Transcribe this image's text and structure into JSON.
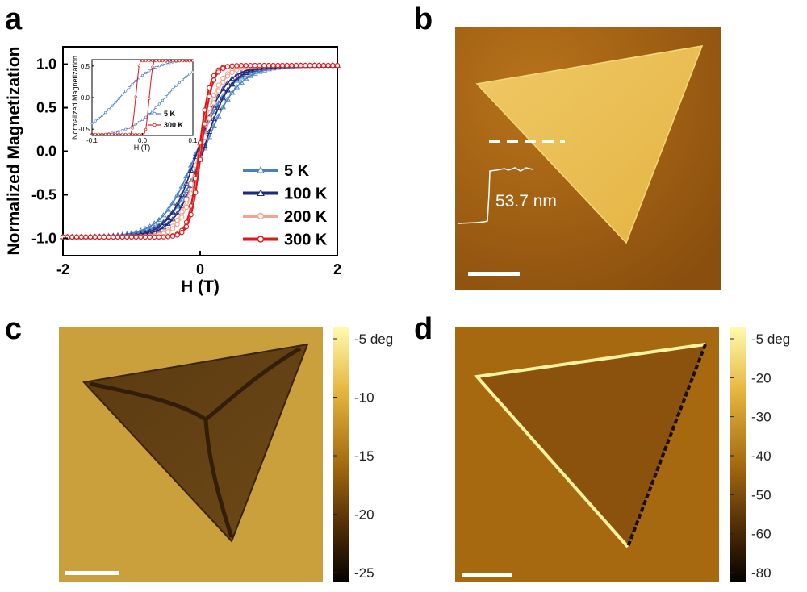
{
  "panels": {
    "a": "a",
    "b": "b",
    "c": "c",
    "d": "d"
  },
  "chart_data": {
    "type": "line",
    "xlabel": "H (T)",
    "ylabel": "Normalized Magnetization",
    "xlim": [
      -2,
      2
    ],
    "ylim": [
      -1.2,
      1.2
    ],
    "xticks": [
      "-2",
      "0",
      "2"
    ],
    "yticks": [
      "-1.0",
      "-0.5",
      "0.0",
      "0.5",
      "1.0"
    ],
    "legend_placement": "lower-right",
    "series": [
      {
        "name": "5 K",
        "color": "#4a7fc1",
        "marker": "triangle",
        "coercive_field": 0.05,
        "saturation_field": 1.6
      },
      {
        "name": "100 K",
        "color": "#202a7a",
        "marker": "triangle",
        "coercive_field": 0.04,
        "saturation_field": 1.3
      },
      {
        "name": "200 K",
        "color": "#f0a590",
        "marker": "circle",
        "coercive_field": 0.02,
        "saturation_field": 0.9
      },
      {
        "name": "300 K",
        "color": "#e01818",
        "marker": "circle",
        "coercive_field": 0.015,
        "saturation_field": 0.5
      }
    ],
    "inset": {
      "xlabel": "H (T)",
      "ylabel": "Normalized Magnetization",
      "xlim": [
        -0.1,
        0.1
      ],
      "ylim": [
        -0.6,
        0.6
      ],
      "xticks": [
        "-0.1",
        "0.0",
        "0.1"
      ],
      "yticks": [
        "-0.5",
        "0.0",
        "0.5"
      ],
      "series": [
        {
          "name": "5 K",
          "color": "#4a7fc1",
          "coercive_field": 0.05
        },
        {
          "name": "300 K",
          "color": "#e01818",
          "coercive_field": 0.015
        }
      ]
    }
  },
  "panel_b": {
    "height_label": "53.7 nm"
  },
  "panel_c": {
    "colorbar_ticks": [
      "-5 deg",
      "-10",
      "-15",
      "-20",
      "-25"
    ]
  },
  "panel_d": {
    "colorbar_ticks": [
      "-5 deg",
      "-20",
      "-30",
      "-40",
      "-50",
      "-60",
      "-80"
    ]
  }
}
